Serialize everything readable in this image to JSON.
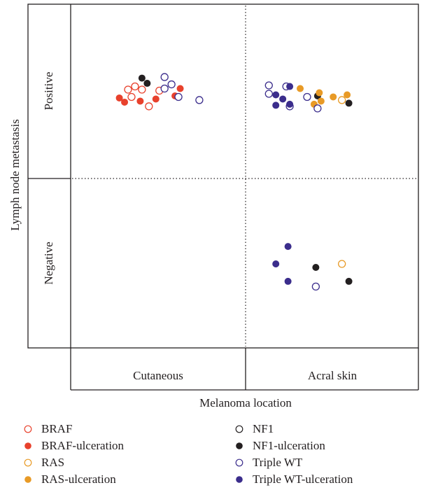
{
  "chart_data": {
    "type": "scatter",
    "title": "",
    "xlabel": "Melanoma location",
    "ylabel": "Lymph node metastasis",
    "x_categories": [
      "Cutaneous",
      "Acral skin"
    ],
    "y_categories": [
      "Positive",
      "Negative"
    ],
    "colors": {
      "BRAF": "#e8412c",
      "NF1": "#231f20",
      "RAS": "#e89a26",
      "TripleWT": "#3b2d8c"
    },
    "series": [
      {
        "name": "BRAF",
        "color": "#e8412c",
        "filled": false,
        "location": "Cutaneous",
        "points": [
          {
            "x": 0.37,
            "y": 0.58
          },
          {
            "x": 0.33,
            "y": 0.55
          },
          {
            "x": 0.41,
            "y": 0.55
          },
          {
            "x": 0.51,
            "y": 0.54
          },
          {
            "x": 0.35,
            "y": 0.48
          },
          {
            "x": 0.45,
            "y": 0.39
          }
        ]
      },
      {
        "name": "BRAF-ulceration",
        "color": "#e8412c",
        "filled": true,
        "points": [
          {
            "x": 0.31,
            "y": 0.43
          },
          {
            "x": 0.28,
            "y": 0.47
          },
          {
            "x": 0.63,
            "y": 0.56
          },
          {
            "x": 0.6,
            "y": 0.49
          },
          {
            "x": 0.49,
            "y": 0.46
          },
          {
            "x": 0.4,
            "y": 0.44
          }
        ]
      },
      {
        "name": "NF1",
        "color": "#231f20",
        "filled": false,
        "points": []
      },
      {
        "name": "NF1-ulceration",
        "color": "#231f20",
        "filled": true,
        "points": [
          {
            "x": 0.41,
            "y": 0.66
          },
          {
            "x": 0.44,
            "y": 0.61
          },
          {
            "x": 1.42,
            "y": 0.49
          },
          {
            "x": 1.6,
            "y": 0.42
          }
        ]
      },
      {
        "name": "RAS",
        "color": "#e89a26",
        "filled": false,
        "points": [
          {
            "x": 1.56,
            "y": 0.45
          }
        ]
      },
      {
        "name": "RAS-ulceration",
        "color": "#e89a26",
        "filled": true,
        "points": [
          {
            "x": 1.32,
            "y": 0.56
          },
          {
            "x": 1.43,
            "y": 0.52
          },
          {
            "x": 1.51,
            "y": 0.48
          },
          {
            "x": 1.59,
            "y": 0.5
          },
          {
            "x": 1.44,
            "y": 0.44
          },
          {
            "x": 1.4,
            "y": 0.41
          }
        ]
      },
      {
        "name": "Triple WT",
        "color": "#3b2d8c",
        "filled": false,
        "points": [
          {
            "x": 0.54,
            "y": 0.67
          },
          {
            "x": 0.58,
            "y": 0.6
          },
          {
            "x": 0.54,
            "y": 0.56
          },
          {
            "x": 0.62,
            "y": 0.48
          },
          {
            "x": 0.74,
            "y": 0.45
          },
          {
            "x": 1.14,
            "y": 0.59
          },
          {
            "x": 1.24,
            "y": 0.58
          },
          {
            "x": 1.14,
            "y": 0.51
          },
          {
            "x": 1.36,
            "y": 0.48
          },
          {
            "x": 1.26,
            "y": 0.39
          },
          {
            "x": 1.42,
            "y": 0.37
          }
        ]
      },
      {
        "name": "Triple WT-ulceration",
        "color": "#3b2d8c",
        "filled": true,
        "points": [
          {
            "x": 1.22,
            "y": 0.46
          },
          {
            "x": 1.18,
            "y": 0.4
          },
          {
            "x": 1.26,
            "y": 0.58
          },
          {
            "x": 1.18,
            "y": 0.5
          },
          {
            "x": 1.26,
            "y": 0.41
          }
        ]
      }
    ],
    "legend": [
      {
        "label": "BRAF",
        "color": "#e8412c",
        "filled": false
      },
      {
        "label": "BRAF-ulceration",
        "color": "#e8412c",
        "filled": true
      },
      {
        "label": "RAS",
        "color": "#e89a26",
        "filled": false
      },
      {
        "label": "RAS-ulceration",
        "color": "#e89a26",
        "filled": true
      },
      {
        "label": "NF1",
        "color": "#231f20",
        "filled": false
      },
      {
        "label": "NF1-ulceration",
        "color": "#231f20",
        "filled": true
      },
      {
        "label": "Triple WT",
        "color": "#3b2d8c",
        "filled": false
      },
      {
        "label": "Triple WT-ulceration",
        "color": "#3b2d8c",
        "filled": true
      }
    ],
    "legend_position": "bottom",
    "grid": false
  }
}
